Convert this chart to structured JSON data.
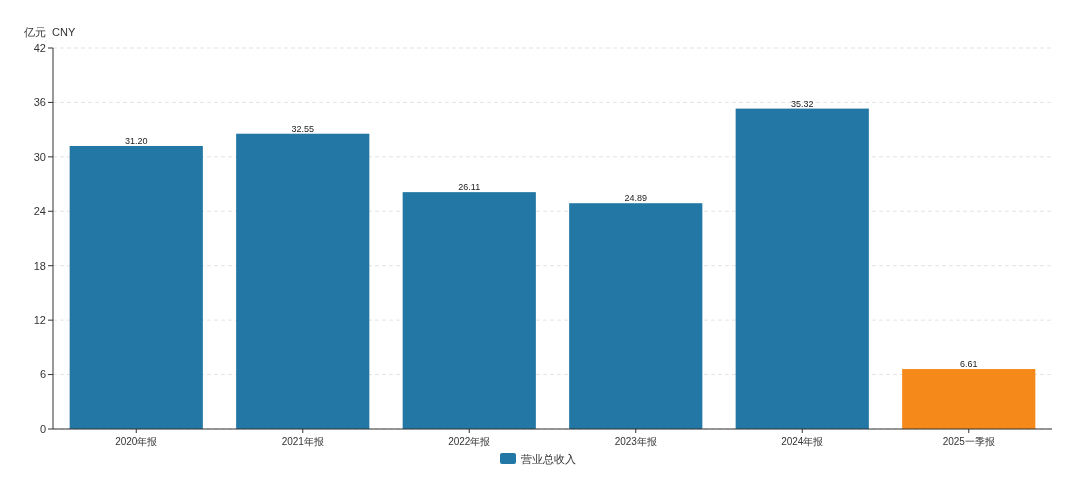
{
  "chart_data": {
    "type": "bar",
    "ylabel": "亿元  CNY",
    "categories": [
      "2020年报",
      "2021年报",
      "2022年报",
      "2023年报",
      "2024年报",
      "2025一季报"
    ],
    "series": [
      {
        "name": "营业总收入",
        "color": "#2277a4",
        "colors": [
          "#2277a4",
          "#2277a4",
          "#2277a4",
          "#2277a4",
          "#2277a4",
          "#f5891a"
        ],
        "values": [
          31.2,
          32.55,
          26.11,
          24.89,
          35.32,
          6.61
        ],
        "value_labels": [
          "31.20",
          "32.55",
          "26.11",
          "24.89",
          "35.32",
          "6.61"
        ]
      }
    ],
    "ylim": [
      0,
      42
    ],
    "yticks": [
      0,
      6,
      12,
      18,
      24,
      30,
      36,
      42
    ],
    "grid": "y",
    "legend": "bottom"
  }
}
